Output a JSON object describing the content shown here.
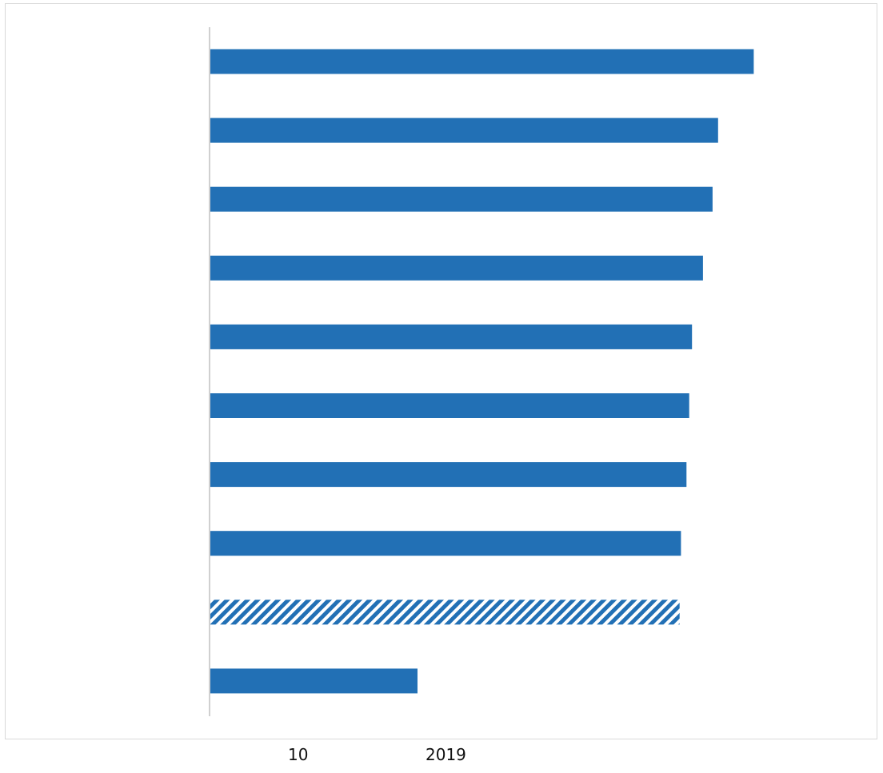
{
  "chart_data": {
    "type": "bar",
    "orientation": "horizontal",
    "values": [
      39.6,
      37.0,
      36.6,
      35.9,
      35.1,
      34.9,
      34.7,
      34.3,
      34.2,
      15.1
    ],
    "highlighted_index": 8,
    "highlight_style": "hatched",
    "bar_color": "#2270b5",
    "axis_line_color": "#d0d0d0",
    "xlim": [
      0,
      45
    ],
    "x_tick_labels": [
      "10",
      "2019"
    ],
    "title": "",
    "xlabel": "",
    "ylabel": "",
    "grid": false
  }
}
